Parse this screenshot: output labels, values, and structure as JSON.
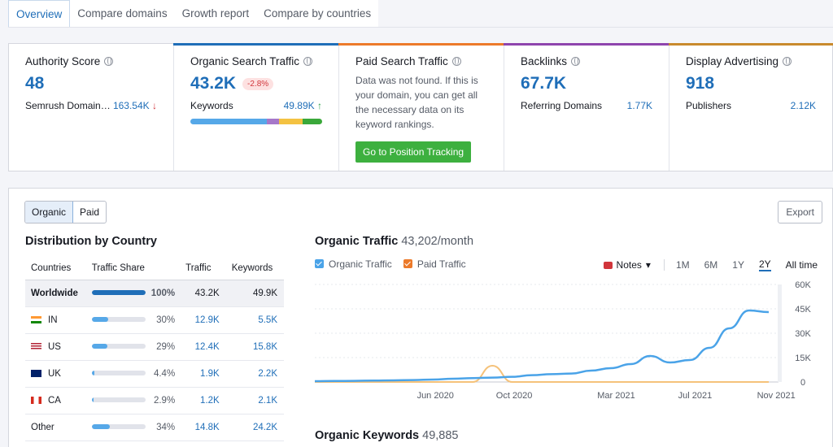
{
  "tabs": [
    "Overview",
    "Compare domains",
    "Growth report",
    "Compare by countries"
  ],
  "cards": {
    "authority": {
      "title": "Authority Score",
      "value": "48",
      "row_label": "Semrush Domain…",
      "row_value": "163.54K",
      "row_arrow": "↓"
    },
    "organic": {
      "title": "Organic Search Traffic",
      "value": "43.2K",
      "delta": "-2.8%",
      "row_label": "Keywords",
      "row_value": "49.89K",
      "row_arrow": "↑"
    },
    "paid": {
      "title": "Paid Search Traffic",
      "text": "Data was not found. If this is your domain, you can get all the necessary data on its keyword rankings.",
      "button": "Go to Position Tracking"
    },
    "backlinks": {
      "title": "Backlinks",
      "value": "67.7K",
      "row_label": "Referring Domains",
      "row_value": "1.77K"
    },
    "display": {
      "title": "Display Advertising",
      "value": "918",
      "row_label": "Publishers",
      "row_value": "2.12K"
    }
  },
  "keyword_distribution": [
    0.58,
    0.09,
    0.18,
    0.15
  ],
  "colors": {
    "accent": "#1f6eb8",
    "authority": "#ffffff",
    "organic": "#1f6eb8",
    "paid": "#ec7a2a",
    "backlinks": "#8e44ad",
    "display": "#c98a2d",
    "seg1": "#56a8e8",
    "seg2": "#a678c9",
    "seg3": "#f4c242",
    "seg4": "#3aa83a",
    "organic_line": "#4aa3e8",
    "paid_line": "#f5c27a"
  },
  "panel": {
    "toggle": [
      "Organic",
      "Paid"
    ],
    "export": "Export",
    "distribution_title": "Distribution by Country",
    "columns": [
      "Countries",
      "Traffic Share",
      "Traffic",
      "Keywords"
    ],
    "rows": [
      {
        "country": "Worldwide",
        "flag": "",
        "share_label": "100%",
        "share": 1.0,
        "traffic": "43.2K",
        "keywords": "49.9K"
      },
      {
        "country": "IN",
        "flag": "in",
        "share_label": "30%",
        "share": 0.3,
        "traffic": "12.9K",
        "keywords": "5.5K"
      },
      {
        "country": "US",
        "flag": "us",
        "share_label": "29%",
        "share": 0.29,
        "traffic": "12.4K",
        "keywords": "15.8K"
      },
      {
        "country": "UK",
        "flag": "uk",
        "share_label": "4.4%",
        "share": 0.044,
        "traffic": "1.9K",
        "keywords": "2.2K"
      },
      {
        "country": "CA",
        "flag": "ca",
        "share_label": "2.9%",
        "share": 0.029,
        "traffic": "1.2K",
        "keywords": "2.1K"
      },
      {
        "country": "Other",
        "flag": "",
        "share_label": "34%",
        "share": 0.34,
        "traffic": "14.8K",
        "keywords": "24.2K"
      }
    ],
    "organic_traffic_title": "Organic Traffic",
    "organic_traffic_value": "43,202/month",
    "legend": [
      "Organic Traffic",
      "Paid Traffic"
    ],
    "notes": "Notes",
    "ranges": [
      "1M",
      "6M",
      "1Y",
      "2Y",
      "All time"
    ],
    "active_range": "2Y",
    "organic_keywords_title": "Organic Keywords",
    "organic_keywords_value": "49,885"
  },
  "chart_data": {
    "type": "line",
    "title": "Organic Traffic",
    "x_ticks": [
      "Jun 2020",
      "Oct 2020",
      "Mar 2021",
      "Jul 2021",
      "Nov 2021"
    ],
    "y_ticks": [
      "0",
      "15K",
      "30K",
      "45K",
      "60K"
    ],
    "ylim": [
      0,
      60000
    ],
    "series": [
      {
        "name": "Organic Traffic",
        "values": [
          500,
          600,
          700,
          900,
          1000,
          1200,
          1500,
          2000,
          2400,
          2700,
          3200,
          4200,
          4800,
          5200,
          7000,
          8500,
          11000,
          16000,
          12000,
          13500,
          21000,
          33000,
          44000,
          43000
        ]
      },
      {
        "name": "Paid Traffic",
        "values": [
          0,
          0,
          0,
          0,
          0,
          0,
          0,
          0,
          0,
          10000,
          0,
          0,
          0,
          0,
          0,
          0,
          0,
          0,
          0,
          0,
          0,
          0,
          0,
          0
        ]
      }
    ]
  }
}
